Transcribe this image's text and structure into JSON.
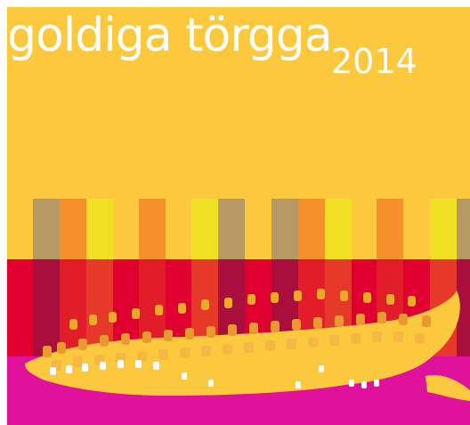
{
  "poster": {
    "title": "goldiga törgga",
    "year": "2014"
  },
  "colors": {
    "background": "#fcc83e",
    "stripe_red": "#df0030",
    "band_magenta": "#e0119a",
    "stripe_olive": "#b79a63",
    "stripe_orange": "#f5902a",
    "stripe_yellow": "#f0df22",
    "stripe_maroon": "#a5103e",
    "text": "#ffffff"
  },
  "artwork": {
    "subject": "corn-cob-illustration"
  }
}
